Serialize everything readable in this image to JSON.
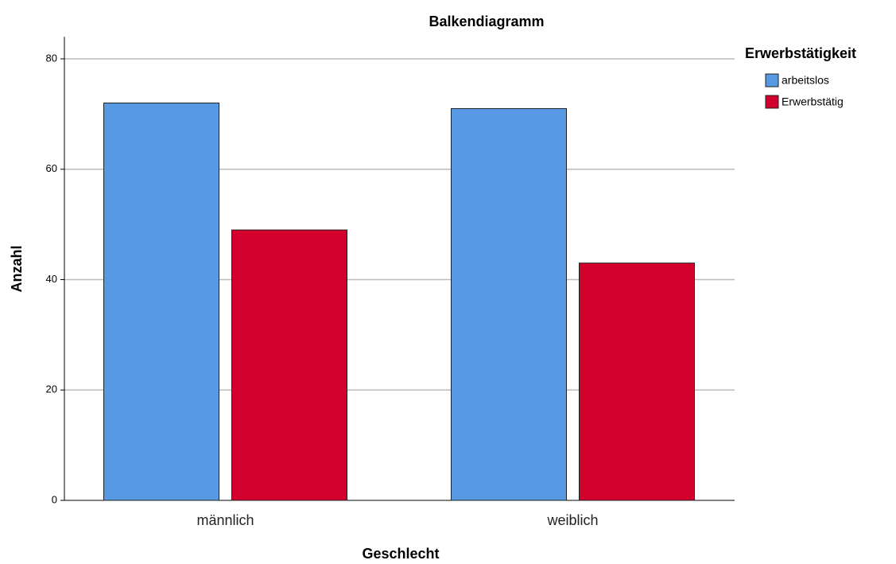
{
  "chart_data": {
    "type": "bar",
    "title": "Balkendiagramm",
    "x_label": "Geschlecht",
    "y_label": "Anzahl",
    "legend_title": "Erwerbstätigkeit",
    "categories": [
      "männlich",
      "weiblich"
    ],
    "series": [
      {
        "name": "arbeitslos",
        "color": "#5799e3",
        "values": [
          72,
          71
        ]
      },
      {
        "name": "Erwerbstätig",
        "color": "#d3002d",
        "values": [
          49,
          43
        ]
      }
    ],
    "ylim": [
      0,
      84
    ],
    "yticks": [
      0,
      20,
      40,
      60,
      80
    ],
    "grid": true,
    "legend": "right"
  }
}
